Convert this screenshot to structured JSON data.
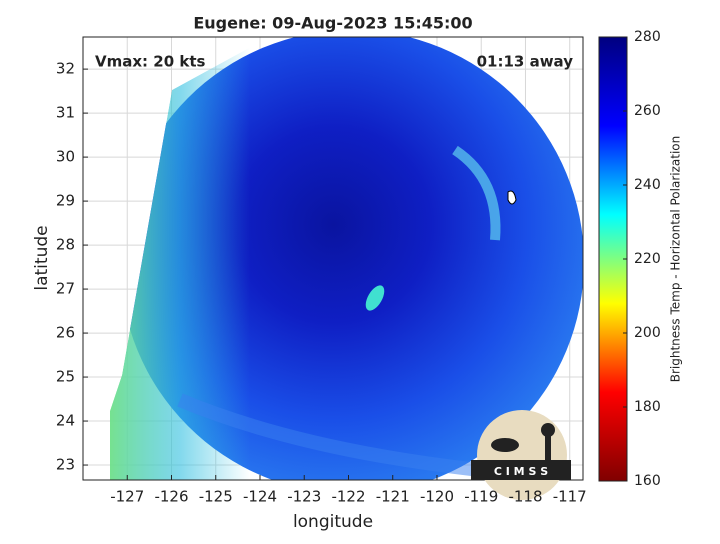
{
  "chart_data": {
    "type": "image",
    "title": "Eugene: 09-Aug-2023 15:45:00",
    "annotations": [
      "Vmax: 20 kts",
      "01:13 away"
    ],
    "xlabel": "longitude",
    "ylabel": "latitude",
    "xlim": [
      -128,
      -116.7
    ],
    "ylim": [
      22.66,
      32.73
    ],
    "xticks": [
      -127,
      -126,
      -125,
      -124,
      -123,
      -122,
      -121,
      -120,
      -119,
      -118,
      -117
    ],
    "yticks": [
      23,
      24,
      25,
      26,
      27,
      28,
      29,
      30,
      31,
      32
    ],
    "grid": true,
    "colorbar": {
      "label": "Brightness Temp - Horizontal Polarization",
      "lim": [
        160,
        280
      ],
      "ticks": [
        160,
        180,
        200,
        220,
        240,
        260,
        280
      ],
      "colormap": [
        "#800000",
        "#ff0000",
        "#ffff00",
        "#00ffff",
        "#0000ff",
        "#000080"
      ]
    },
    "logo": "C I M S S"
  }
}
